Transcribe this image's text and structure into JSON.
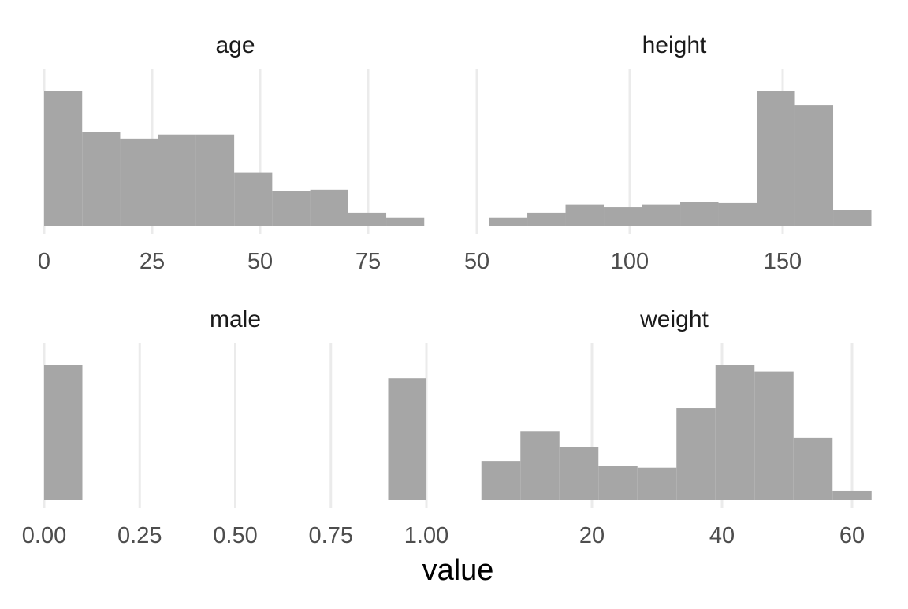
{
  "chart_data": {
    "type": "histogram",
    "xlabel": "value",
    "ylabel": "",
    "grid": true,
    "bar_color": "#a6a6a6",
    "grid_color": "#ebebeb",
    "facets": [
      {
        "title": "age",
        "xlim": [
          0,
          88.5
        ],
        "ticks": [
          0,
          25,
          50,
          75
        ],
        "tick_labels": [
          "0",
          "25",
          "50",
          "75"
        ],
        "bins": [
          {
            "x0": 0,
            "x1": 8.8,
            "count": 100
          },
          {
            "x0": 8.8,
            "x1": 17.6,
            "count": 70
          },
          {
            "x0": 17.6,
            "x1": 26.4,
            "count": 65
          },
          {
            "x0": 26.4,
            "x1": 35.2,
            "count": 68
          },
          {
            "x0": 35.2,
            "x1": 44.0,
            "count": 68
          },
          {
            "x0": 44.0,
            "x1": 52.8,
            "count": 40
          },
          {
            "x0": 52.8,
            "x1": 61.6,
            "count": 26
          },
          {
            "x0": 61.6,
            "x1": 70.4,
            "count": 27
          },
          {
            "x0": 70.4,
            "x1": 79.2,
            "count": 10
          },
          {
            "x0": 79.2,
            "x1": 88.0,
            "count": 6
          }
        ]
      },
      {
        "title": "height",
        "xlim": [
          50,
          179.5
        ],
        "ticks": [
          50,
          100,
          150
        ],
        "tick_labels": [
          "50",
          "100",
          "150"
        ],
        "bins": [
          {
            "x0": 54,
            "x1": 66.5,
            "count": 6
          },
          {
            "x0": 66.5,
            "x1": 79,
            "count": 10
          },
          {
            "x0": 79,
            "x1": 91.5,
            "count": 16
          },
          {
            "x0": 91.5,
            "x1": 104,
            "count": 14
          },
          {
            "x0": 104,
            "x1": 116.5,
            "count": 16
          },
          {
            "x0": 116.5,
            "x1": 129,
            "count": 18
          },
          {
            "x0": 129,
            "x1": 141.5,
            "count": 17
          },
          {
            "x0": 141.5,
            "x1": 154,
            "count": 100
          },
          {
            "x0": 154,
            "x1": 166.5,
            "count": 90
          },
          {
            "x0": 166.5,
            "x1": 179,
            "count": 12
          }
        ]
      },
      {
        "title": "male",
        "xlim": [
          0,
          1.0
        ],
        "ticks": [
          0,
          0.25,
          0.5,
          0.75,
          1.0
        ],
        "tick_labels": [
          "0.00",
          "0.25",
          "0.50",
          "0.75",
          "1.00"
        ],
        "bins": [
          {
            "x0": 0,
            "x1": 0.1,
            "count": 100
          },
          {
            "x0": 0.9,
            "x1": 1.0,
            "count": 90
          }
        ]
      },
      {
        "title": "weight",
        "xlim": [
          3,
          63
        ],
        "ticks": [
          20,
          40,
          60
        ],
        "tick_labels": [
          "20",
          "40",
          "60"
        ],
        "bins": [
          {
            "x0": 3.0,
            "x1": 9.0,
            "count": 29
          },
          {
            "x0": 9.0,
            "x1": 15.0,
            "count": 51
          },
          {
            "x0": 15.0,
            "x1": 21.0,
            "count": 39
          },
          {
            "x0": 21.0,
            "x1": 27.0,
            "count": 25
          },
          {
            "x0": 27.0,
            "x1": 33.0,
            "count": 24
          },
          {
            "x0": 33.0,
            "x1": 39.0,
            "count": 68
          },
          {
            "x0": 39.0,
            "x1": 45.0,
            "count": 100
          },
          {
            "x0": 45.0,
            "x1": 51.0,
            "count": 95
          },
          {
            "x0": 51.0,
            "x1": 57.0,
            "count": 46
          },
          {
            "x0": 57.0,
            "x1": 63.0,
            "count": 7
          }
        ]
      }
    ]
  }
}
